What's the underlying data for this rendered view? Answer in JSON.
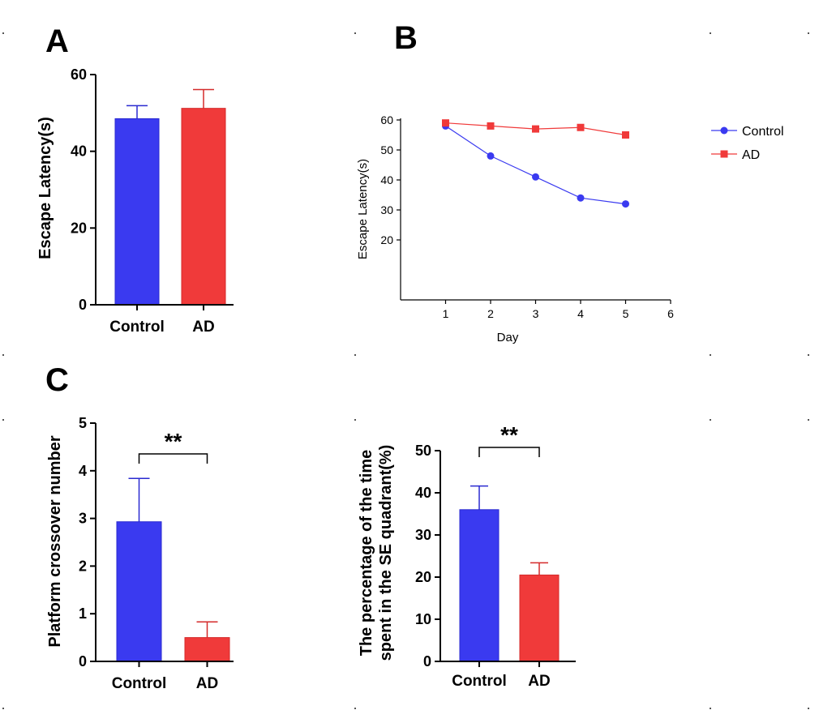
{
  "colors": {
    "control": "#3a3af0",
    "ad": "#f03a3a",
    "control_dark": "#2a2ad0",
    "ad_dark": "#d42a2a",
    "axis": "#000000"
  },
  "panels": {
    "a": "A",
    "b": "B",
    "c": "C"
  },
  "chart_data": [
    {
      "id": "A",
      "type": "bar",
      "categories": [
        "Control",
        "AD"
      ],
      "values": [
        48.5,
        51.2
      ],
      "errors": [
        3.4,
        4.9
      ],
      "ylabel": "Escape Latency(s)",
      "ylim": [
        0,
        60
      ],
      "yticks": [
        0,
        20,
        40,
        60
      ],
      "significance": ""
    },
    {
      "id": "B",
      "type": "line",
      "xlabel": "Day",
      "ylabel": "Escape Latency(s)",
      "xlim": [
        0,
        6
      ],
      "ylim": [
        0,
        60
      ],
      "xticks": [
        1,
        2,
        3,
        4,
        5,
        6
      ],
      "yticks": [
        20,
        30,
        40,
        50,
        60
      ],
      "series": [
        {
          "name": "Control",
          "x": [
            1,
            2,
            3,
            4,
            5
          ],
          "values": [
            58,
            48,
            41,
            34,
            32
          ],
          "marker": "circle"
        },
        {
          "name": "AD",
          "x": [
            1,
            2,
            3,
            4,
            5
          ],
          "values": [
            59,
            58,
            57,
            57.5,
            55
          ],
          "marker": "square"
        }
      ],
      "legend": "right"
    },
    {
      "id": "C",
      "type": "bar",
      "categories": [
        "Control",
        "AD"
      ],
      "values": [
        2.93,
        0.5
      ],
      "errors": [
        0.91,
        0.33
      ],
      "ylabel": "Platform crossover number",
      "ylim": [
        0,
        5
      ],
      "yticks": [
        0,
        1,
        2,
        3,
        4,
        5
      ],
      "significance": "**"
    },
    {
      "id": "D",
      "type": "bar",
      "categories": [
        "Control",
        "AD"
      ],
      "values": [
        36,
        20.5
      ],
      "errors": [
        5.6,
        2.9
      ],
      "ylabel_lines": [
        "The percentage of the time",
        "spent in the SE quadrant(%)"
      ],
      "ylim": [
        0,
        50
      ],
      "yticks": [
        0,
        10,
        20,
        30,
        40,
        50
      ],
      "significance": "**"
    }
  ]
}
